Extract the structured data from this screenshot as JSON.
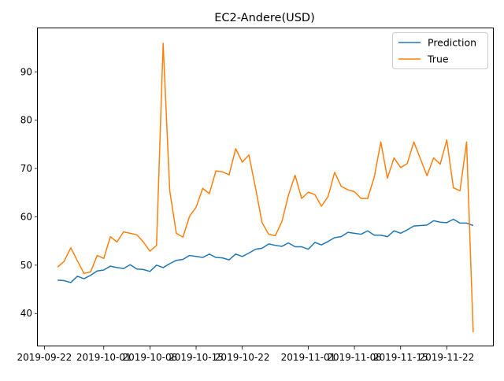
{
  "chart_data": {
    "type": "line",
    "title": "EC2-Andere(USD)",
    "xlabel": "",
    "ylabel": "",
    "x_start": "2019-09-24",
    "x_step_days": 1,
    "xlim": [
      "2019-09-21",
      "2019-11-29"
    ],
    "ylim": [
      33.2,
      99.0
    ],
    "x_ticks": [
      "2019-09-22",
      "2019-10-01",
      "2019-10-08",
      "2019-10-15",
      "2019-10-22",
      "2019-11-01",
      "2019-11-08",
      "2019-11-15",
      "2019-11-22"
    ],
    "x_tick_labels": [
      "2019-09-22",
      "2019-10-01",
      "2019-10-08",
      "2019-10-15",
      "2019-10-22",
      "2019-11-01",
      "2019-11-08",
      "2019-11-15",
      "2019-11-22"
    ],
    "y_ticks": [
      40,
      50,
      60,
      70,
      80,
      90
    ],
    "grid": false,
    "legend_position": "top-right",
    "series": [
      {
        "name": "Prediction",
        "color": "#1f77b4",
        "values": [
          46.9,
          46.8,
          46.4,
          47.7,
          47.2,
          47.9,
          48.8,
          49.0,
          49.8,
          49.5,
          49.3,
          50.1,
          49.2,
          49.1,
          48.7,
          50.0,
          49.5,
          50.3,
          51.0,
          51.2,
          52.0,
          51.8,
          51.6,
          52.3,
          51.6,
          51.5,
          51.1,
          52.3,
          51.8,
          52.5,
          53.3,
          53.5,
          54.4,
          54.1,
          53.9,
          54.6,
          53.8,
          53.8,
          53.3,
          54.7,
          54.2,
          54.9,
          55.7,
          55.9,
          56.8,
          56.6,
          56.4,
          57.1,
          56.2,
          56.2,
          55.9,
          57.1,
          56.6,
          57.3,
          58.1,
          58.2,
          58.3,
          59.2,
          58.9,
          58.8,
          59.5,
          58.7,
          58.7,
          58.2
        ]
      },
      {
        "name": "True",
        "color": "#ff7f0e",
        "values": [
          49.6,
          50.8,
          53.6,
          50.9,
          48.3,
          48.6,
          52.0,
          51.4,
          55.9,
          54.8,
          56.9,
          56.6,
          56.3,
          54.8,
          52.9,
          54.1,
          95.9,
          65.4,
          56.6,
          55.8,
          60.1,
          62.0,
          65.9,
          64.8,
          69.5,
          69.3,
          68.7,
          74.1,
          71.3,
          72.8,
          66.0,
          58.8,
          56.4,
          56.1,
          59.0,
          64.5,
          68.6,
          63.8,
          65.1,
          64.6,
          62.2,
          64.2,
          69.2,
          66.3,
          65.6,
          65.2,
          63.8,
          63.8,
          68.2,
          75.5,
          68.0,
          72.2,
          70.2,
          71.0,
          75.5,
          72.0,
          68.5,
          72.2,
          70.9,
          75.9,
          66.0,
          65.4,
          75.5,
          36.1
        ]
      }
    ]
  }
}
